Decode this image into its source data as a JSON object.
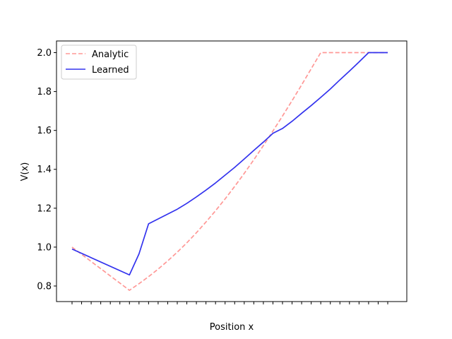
{
  "chart_data": {
    "type": "line",
    "title": "",
    "xlabel": "Position x",
    "ylabel": "V(x)",
    "ylim": [
      0.72,
      2.06
    ],
    "y_ticks": [
      0.8,
      1.0,
      1.2,
      1.4,
      1.6,
      1.8,
      2.0
    ],
    "y_tick_labels": [
      "0.8",
      "1.0",
      "1.2",
      "1.4",
      "1.6",
      "1.8",
      "2.0"
    ],
    "x_tick_count": 34,
    "x_tick_labels_visible": false,
    "grid": false,
    "legend_position": "top-left",
    "series": [
      {
        "name": "Analytic",
        "color": "#ff9896",
        "style": "dashed",
        "x": [
          0,
          1,
          2,
          3,
          4,
          5,
          6,
          7,
          8,
          9,
          10,
          11,
          12,
          13,
          14,
          15,
          16,
          17,
          18,
          19,
          20,
          21,
          22,
          23,
          24,
          25,
          26,
          27,
          28,
          29,
          30,
          31,
          32,
          33
        ],
        "values": [
          1.0,
          0.963,
          0.926,
          0.889,
          0.852,
          0.815,
          0.778,
          0.812,
          0.848,
          0.887,
          0.929,
          0.974,
          1.022,
          1.074,
          1.129,
          1.187,
          1.248,
          1.312,
          1.379,
          1.449,
          1.522,
          1.597,
          1.674,
          1.753,
          1.834,
          1.917,
          2.0,
          2.0,
          2.0,
          2.0,
          2.0,
          2.0,
          2.0,
          2.0
        ]
      },
      {
        "name": "Learned",
        "color": "#3333ee",
        "style": "solid",
        "x": [
          0,
          6,
          7,
          8,
          9,
          10,
          11,
          12,
          13,
          14,
          15,
          16,
          17,
          18,
          19,
          20,
          21,
          22,
          23,
          24,
          25,
          26,
          27,
          28,
          29,
          30,
          31,
          32,
          33
        ],
        "values": [
          0.99,
          0.857,
          0.965,
          1.12,
          1.145,
          1.17,
          1.195,
          1.225,
          1.258,
          1.293,
          1.33,
          1.37,
          1.41,
          1.453,
          1.497,
          1.54,
          1.585,
          1.61,
          1.647,
          1.688,
          1.728,
          1.77,
          1.813,
          1.86,
          1.905,
          1.952,
          2.0,
          2.0,
          2.0
        ]
      }
    ]
  }
}
